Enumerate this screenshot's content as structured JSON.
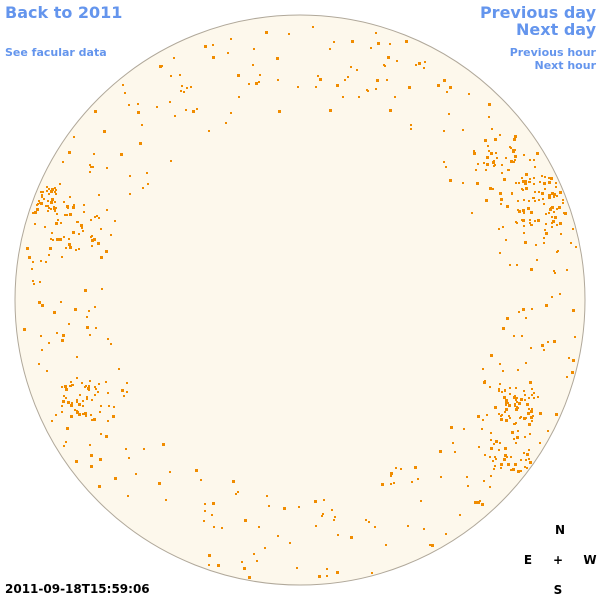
{
  "nav": {
    "back": "Back to 2011",
    "facular": "See facular data",
    "previous_day": "Previous day",
    "next_day": "Next day",
    "previous_hour": "Previous hour",
    "next_hour": "Next hour"
  },
  "timestamp": "2011-09-18T15:59:06",
  "compass": {
    "north": "N",
    "east": "E",
    "center": "+",
    "west": "W",
    "south": "S"
  }
}
